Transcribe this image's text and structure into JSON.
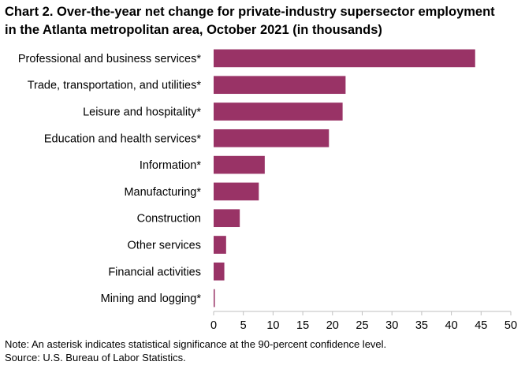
{
  "title_line1": "Chart 2. Over-the-year net change for private-industry supersector employment",
  "title_line2": "in the Atlanta metropolitan area, October 2021 (in thousands)",
  "note": "Note: An asterisk indicates statistical significance at the 90-percent confidence level.",
  "source": "Source: U.S. Bureau of Labor Statistics.",
  "colors": {
    "bar": "#993366",
    "axis": "#bfbfbf"
  },
  "chart_data": {
    "type": "bar",
    "orientation": "horizontal",
    "categories": [
      "Professional and business services*",
      "Trade, transportation, and utilities*",
      "Leisure and hospitality*",
      "Education and health services*",
      "Information*",
      "Manufacturing*",
      "Construction",
      "Other services",
      "Financial activities",
      "Mining and logging*"
    ],
    "values": [
      44.0,
      22.2,
      21.7,
      19.4,
      8.6,
      7.6,
      4.4,
      2.1,
      1.8,
      0.2
    ],
    "xlim": [
      0,
      50
    ],
    "xticks": [
      0,
      5,
      10,
      15,
      20,
      25,
      30,
      35,
      40,
      45,
      50
    ],
    "grid": false,
    "legend": "none"
  }
}
